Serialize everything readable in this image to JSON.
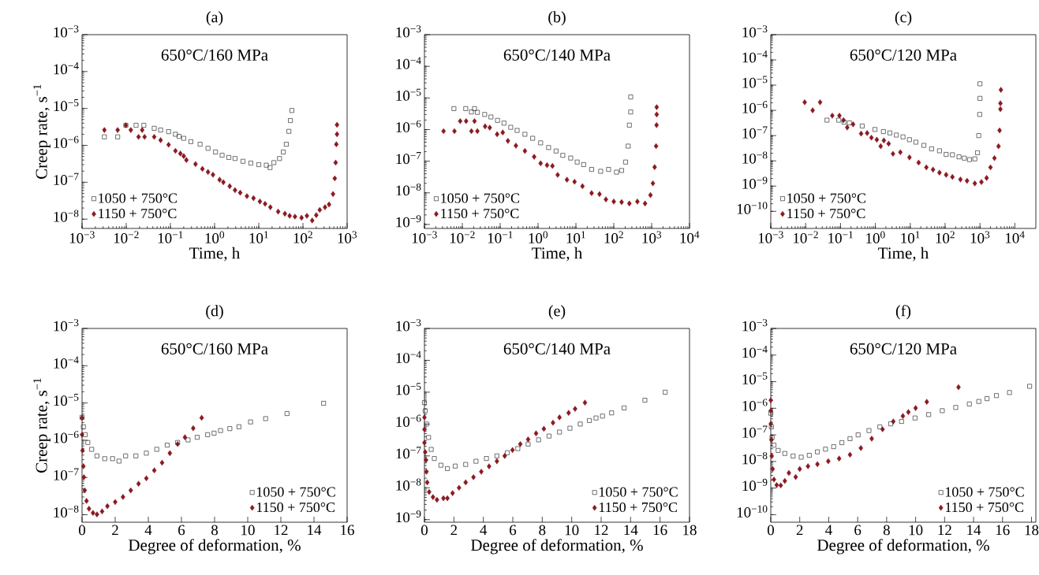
{
  "chart_data": [
    {
      "type": "scatter",
      "title": "(a)",
      "xlabel": "Time, h",
      "ylabel": "Creep rate, s$^{−1}$",
      "annotations": [
        "650°C/160 MPa"
      ],
      "log": "xy",
      "xlim": [
        0.001,
        1000
      ],
      "ylim": [
        5.6e-09,
        0.001
      ],
      "legend": "bottom left",
      "xticks": [
        {
          "value": 0.001,
          "label": "10$^{−3}$"
        },
        {
          "value": 0.01,
          "label": "10$^{−2}$"
        },
        {
          "value": 0.1,
          "label": "10$^{−1}$"
        },
        {
          "value": 1,
          "label": "10$^{0}$"
        },
        {
          "value": 10,
          "label": "10$^{1}$"
        },
        {
          "value": 100,
          "label": "10$^{2}$"
        },
        {
          "value": 1000,
          "label": "10$^{3}$"
        }
      ],
      "yticks": [
        {
          "value": 1e-08,
          "label": "10$^{−8}$"
        },
        {
          "value": 1e-07,
          "label": "10$^{−7}$"
        },
        {
          "value": 1e-06,
          "label": "10$^{−6}$"
        },
        {
          "value": 1e-05,
          "label": "10$^{−5}$"
        },
        {
          "value": 0.0001,
          "label": "10$^{−4}$"
        },
        {
          "value": 0.001,
          "label": "10$^{−3}$"
        }
      ],
      "series": [
        {
          "name": "1050 + 750°C",
          "color": "#333333",
          "marker": "square",
          "x": [
            0.0032,
            0.0064,
            0.0098,
            0.0167,
            0.025,
            0.043,
            0.06,
            0.091,
            0.13,
            0.157,
            0.2,
            0.29,
            0.47,
            0.71,
            1.05,
            1.48,
            2.1,
            2.9,
            4.4,
            6.6,
            10,
            14.8,
            18,
            22,
            29.5,
            36,
            42,
            48,
            52,
            56
          ],
          "values": [
            1.7e-06,
            1.7e-06,
            3.5e-06,
            3.5e-06,
            3.5e-06,
            2.9e-06,
            2.6e-06,
            2.35e-06,
            2e-06,
            1.75e-06,
            1.55e-06,
            1.26e-06,
            1.07e-06,
            8.3e-07,
            6.6e-07,
            5.4e-07,
            4.7e-07,
            4.4e-07,
            3.7e-07,
            3.3e-07,
            3e-07,
            2.9e-07,
            2.5e-07,
            3.4e-07,
            4.4e-07,
            6.6e-07,
            1.07e-06,
            2.4e-06,
            4.7e-06,
            8.8e-06
          ]
        },
        {
          "name": "1150 + 750°C",
          "color": "#8b1a22",
          "marker": "diamond",
          "x": [
            0.0032,
            0.0064,
            0.0098,
            0.0127,
            0.019,
            0.023,
            0.026,
            0.043,
            0.06,
            0.091,
            0.13,
            0.168,
            0.2,
            0.23,
            0.37,
            0.53,
            0.71,
            0.92,
            1.3,
            1.58,
            2.2,
            2.9,
            3.8,
            5.4,
            7.6,
            10.6,
            13.9,
            18.3,
            27.5,
            39,
            50,
            66,
            93,
            123,
            162,
            200,
            240,
            316,
            390,
            480,
            525,
            550,
            570,
            590,
            590
          ],
          "values": [
            2.6e-06,
            2.6e-06,
            3.5e-06,
            2.6e-06,
            1.7e-06,
            2.6e-06,
            1.7e-06,
            1.7e-06,
            1.38e-06,
            1.04e-06,
            7.1e-07,
            6e-07,
            5.1e-07,
            4e-07,
            3.1e-07,
            2.3e-07,
            1.9e-07,
            1.6e-07,
            1.17e-07,
            1e-07,
            7.8e-08,
            6.1e-08,
            5.2e-08,
            4.2e-08,
            3.7e-08,
            3e-08,
            2.6e-08,
            2.1e-08,
            1.6e-08,
            1.4e-08,
            1.23e-08,
            1.17e-08,
            1.09e-08,
            1.23e-08,
            9.2e-09,
            1.28e-08,
            1.78e-08,
            2.1e-08,
            2.5e-08,
            4.8e-08,
            1.27e-07,
            3.4e-07,
            1.07e-06,
            2e-06,
            3.6e-06
          ]
        }
      ]
    },
    {
      "type": "scatter",
      "title": "(b)",
      "xlabel": "Time, h",
      "annotations": [
        "650°C/140 MPa"
      ],
      "log": "xy",
      "xlim": [
        0.001,
        10000
      ],
      "ylim": [
        7.5e-10,
        0.001
      ],
      "legend": "bottom left",
      "xticks": [
        {
          "value": 0.001,
          "label": "10$^{−3}$"
        },
        {
          "value": 0.01,
          "label": "10$^{−2}$"
        },
        {
          "value": 0.1,
          "label": "10$^{−1}$"
        },
        {
          "value": 1,
          "label": "10$^{0}$"
        },
        {
          "value": 10,
          "label": "10$^{1}$"
        },
        {
          "value": 100,
          "label": "10$^{2}$"
        },
        {
          "value": 1000,
          "label": "10$^{3}$"
        },
        {
          "value": 10000,
          "label": "10$^{4}$"
        }
      ],
      "yticks": [
        {
          "value": 1e-09,
          "label": "10$^{−9}$"
        },
        {
          "value": 1e-08,
          "label": "10$^{−8}$"
        },
        {
          "value": 1e-07,
          "label": "10$^{−7}$"
        },
        {
          "value": 1e-06,
          "label": "10$^{−6}$"
        },
        {
          "value": 1e-05,
          "label": "10$^{−5}$"
        },
        {
          "value": 0.0001,
          "label": "10$^{−4}$"
        },
        {
          "value": 0.001,
          "label": "10$^{−3}$"
        }
      ],
      "series": [
        {
          "name": "1050 + 750°C",
          "color": "#333333",
          "marker": "square",
          "x": [
            0.006,
            0.0123,
            0.0174,
            0.021,
            0.025,
            0.039,
            0.057,
            0.085,
            0.126,
            0.19,
            0.28,
            0.45,
            0.72,
            1.17,
            1.9,
            3.0,
            4.5,
            7.3,
            10.8,
            16,
            26,
            45,
            73,
            118,
            161,
            205,
            240,
            258,
            280,
            280
          ],
          "values": [
            4.6e-06,
            4.6e-06,
            3.6e-06,
            4.6e-06,
            3.5e-06,
            3e-06,
            2.5e-06,
            1.95e-06,
            1.6e-06,
            1.18e-06,
            9.4e-07,
            7.1e-07,
            5.3e-07,
            3.8e-07,
            2.7e-07,
            2.1e-07,
            1.53e-07,
            1.26e-07,
            9.4e-08,
            7.8e-08,
            5.5e-08,
            4.8e-08,
            5.5e-08,
            4.5e-08,
            5.1e-08,
            9.4e-08,
            3e-07,
            1.38e-06,
            3.6e-06,
            1.07e-05
          ]
        },
        {
          "name": "1150 + 750°C",
          "color": "#8b1a22",
          "marker": "diamond",
          "x": [
            0.0032,
            0.0062,
            0.0088,
            0.0126,
            0.0174,
            0.021,
            0.025,
            0.04,
            0.053,
            0.083,
            0.117,
            0.16,
            0.26,
            0.45,
            0.79,
            1.17,
            1.73,
            2.4,
            3.3,
            5.8,
            9.2,
            14.9,
            26,
            42,
            62,
            100,
            161,
            258,
            420,
            670,
            930,
            1080,
            1200,
            1310,
            1350,
            1360,
            1360
          ],
          "values": [
            8.9e-07,
            8.9e-07,
            1.85e-06,
            1.85e-06,
            8.9e-07,
            1.85e-06,
            8.9e-07,
            1.26e-06,
            1.15e-06,
            7.1e-07,
            8.1e-07,
            4.4e-07,
            3.1e-07,
            2.1e-07,
            1.38e-07,
            8.6e-08,
            7.5e-08,
            7.1e-08,
            3.7e-08,
            2.6e-08,
            2.24e-08,
            1.62e-08,
            9.8e-09,
            9.1e-09,
            6.2e-09,
            5.3e-09,
            5.1e-09,
            4.6e-09,
            5.3e-09,
            4.6e-09,
            8.5e-09,
            2e-08,
            6.5e-08,
            3e-07,
            1.38e-06,
            3e-06,
            5.1e-06
          ]
        }
      ]
    },
    {
      "type": "scatter",
      "title": "(c)",
      "xlabel": "Time, h",
      "annotations": [
        "650°C/120 MPa"
      ],
      "log": "xy",
      "xlim": [
        0.001,
        40000
      ],
      "ylim": [
        2.1e-11,
        0.001
      ],
      "legend": "bottom left",
      "xticks": [
        {
          "value": 0.001,
          "label": "10$^{−3}$"
        },
        {
          "value": 0.01,
          "label": "10$^{−2}$"
        },
        {
          "value": 0.1,
          "label": "10$^{−1}$"
        },
        {
          "value": 1,
          "label": "10$^{0}$"
        },
        {
          "value": 10,
          "label": "10$^{1}$"
        },
        {
          "value": 100,
          "label": "10$^{2}$"
        },
        {
          "value": 1000,
          "label": "10$^{3}$"
        },
        {
          "value": 10000,
          "label": "10$^{4}$"
        }
      ],
      "yticks": [
        {
          "value": 1e-10,
          "label": "10$^{−10}$"
        },
        {
          "value": 1e-09,
          "label": "10$^{−9}$"
        },
        {
          "value": 1e-08,
          "label": "10$^{−8}$"
        },
        {
          "value": 1e-07,
          "label": "10$^{−7}$"
        },
        {
          "value": 1e-06,
          "label": "10$^{−6}$"
        },
        {
          "value": 1e-05,
          "label": "10$^{−5}$"
        },
        {
          "value": 0.0001,
          "label": "10$^{−4}$"
        },
        {
          "value": 0.001,
          "label": "10$^{−3}$"
        }
      ],
      "series": [
        {
          "name": "1050 + 750°C",
          "color": "#333333",
          "marker": "square",
          "x": [
            0.041,
            0.089,
            0.126,
            0.18,
            0.42,
            0.97,
            1.7,
            2.6,
            4.0,
            6.2,
            9.5,
            14.5,
            24.5,
            41,
            69,
            107,
            162,
            250,
            355,
            500,
            710,
            850,
            920,
            980,
            1000,
            1000
          ],
          "values": [
            4.1e-07,
            4.1e-07,
            3.4e-07,
            3.2e-07,
            2.4e-07,
            1.75e-07,
            1.44e-07,
            1.28e-07,
            1.05e-07,
            8.9e-08,
            6.9e-08,
            5.5e-08,
            4.1e-08,
            3e-08,
            2.5e-08,
            1.8e-08,
            1.74e-08,
            1.44e-08,
            1.28e-08,
            1.12e-08,
            1.2e-08,
            2.1e-08,
            1e-07,
            6.9e-07,
            3e-06,
            1.13e-05
          ]
        },
        {
          "name": "1150 + 750°C",
          "color": "#8b1a22",
          "marker": "diamond",
          "x": [
            0.0094,
            0.0159,
            0.026,
            0.058,
            0.093,
            0.122,
            0.156,
            0.23,
            0.39,
            0.58,
            0.77,
            1.1,
            1.42,
            1.75,
            2.4,
            3.2,
            5.2,
            9.5,
            17.4,
            29,
            45,
            69,
            107,
            162,
            275,
            425,
            710,
            1100,
            1550,
            2000,
            2600,
            3400,
            3650,
            3850,
            3850,
            3980
          ],
          "values": [
            2.1e-06,
            1e-06,
            2.1e-06,
            6.2e-07,
            6.2e-07,
            4.1e-07,
            2.1e-07,
            2.8e-07,
            1.2e-07,
            1.26e-07,
            8.3e-08,
            6.9e-08,
            3.8e-08,
            6.4e-08,
            4.8e-08,
            1.9e-08,
            2.2e-08,
            1.37e-08,
            8.5e-09,
            5.5e-09,
            4.5e-09,
            3.4e-09,
            2.8e-09,
            2.3e-09,
            1.83e-09,
            1.62e-09,
            1.28e-09,
            1.45e-09,
            2.1e-09,
            5.5e-09,
            1.28e-08,
            3.8e-08,
            1.6e-07,
            1.12e-06,
            1.9e-06,
            6.5e-06
          ]
        }
      ]
    },
    {
      "type": "scatter",
      "title": "(d)",
      "xlabel": "Degree of deformation, %",
      "ylabel": "Creep rate, s$^{−1}$",
      "annotations": [
        "650°C/160 MPa"
      ],
      "log": "y",
      "xlim": [
        0,
        16
      ],
      "ylim": [
        6.3e-09,
        0.001
      ],
      "legend": "bottom right",
      "xticks": [
        0,
        2,
        4,
        6,
        8,
        10,
        12,
        14,
        16
      ],
      "yticks": [
        {
          "value": 1e-08,
          "label": "10$^{−8}$"
        },
        {
          "value": 1e-07,
          "label": "10$^{−7}$"
        },
        {
          "value": 1e-06,
          "label": "10$^{−6}$"
        },
        {
          "value": 1e-05,
          "label": "10$^{−5}$"
        },
        {
          "value": 0.0001,
          "label": "10$^{−4}$"
        },
        {
          "value": 0.001,
          "label": "10$^{−3}$"
        }
      ],
      "series": [
        {
          "name": "1050 + 750°C",
          "color": "#333333",
          "marker": "square",
          "x": [
            0,
            0.08,
            0.19,
            0.35,
            0.58,
            0.9,
            1.37,
            1.84,
            2.23,
            2.63,
            3.25,
            3.88,
            4.51,
            5.14,
            5.77,
            6.4,
            6.95,
            7.58,
            7.97,
            8.36,
            8.92,
            9.47,
            10.17,
            11.08,
            12.37,
            14.58
          ],
          "values": [
            4.1e-06,
            2.3e-06,
            1.41e-06,
            8.7e-07,
            5.7e-07,
            3.8e-07,
            3.2e-07,
            3.2e-07,
            2.75e-07,
            3.8e-07,
            3.8e-07,
            4.5e-07,
            5.7e-07,
            7.4e-07,
            8.7e-07,
            1.02e-06,
            1.2e-06,
            1.41e-06,
            1.55e-06,
            1.82e-06,
            2.05e-06,
            2.3e-06,
            3.1e-06,
            3.8e-06,
            5.2e-06,
            9.8e-06
          ]
        },
        {
          "name": "1150 + 750°C",
          "color": "#8b1a22",
          "marker": "diamond",
          "x": [
            0,
            0,
            0.03,
            0.08,
            0.11,
            0.16,
            0.27,
            0.42,
            0.66,
            0.9,
            1.21,
            1.53,
            2.0,
            2.47,
            2.94,
            3.41,
            3.88,
            4.36,
            4.83,
            5.3,
            5.77,
            6.21,
            6.71,
            7.22
          ],
          "values": [
            4e-06,
            1.41e-06,
            5.3e-07,
            2e-07,
            1.02e-07,
            4.5e-08,
            2.35e-08,
            1.45e-08,
            1.12e-08,
            1.02e-08,
            1.23e-08,
            1.7e-08,
            2.2e-08,
            3e-08,
            4.5e-08,
            6.8e-08,
            9.5e-08,
            1.55e-07,
            2.5e-07,
            4.5e-07,
            7.9e-07,
            1.2e-06,
            2.1e-06,
            4e-06
          ]
        }
      ]
    },
    {
      "type": "scatter",
      "title": "(e)",
      "xlabel": "Degree of deformation, %",
      "annotations": [
        "650°C/140 MPa"
      ],
      "log": "y",
      "xlim": [
        0,
        18
      ],
      "ylim": [
        8.3e-10,
        0.001
      ],
      "legend": "bottom right",
      "xticks": [
        0,
        2,
        4,
        6,
        8,
        10,
        12,
        14,
        16,
        18
      ],
      "yticks": [
        {
          "value": 1e-09,
          "label": "10$^{−9}$"
        },
        {
          "value": 1e-08,
          "label": "10$^{−8}$"
        },
        {
          "value": 1e-07,
          "label": "10$^{−7}$"
        },
        {
          "value": 1e-06,
          "label": "10$^{−6}$"
        },
        {
          "value": 1e-05,
          "label": "10$^{−5}$"
        },
        {
          "value": 0.0001,
          "label": "10$^{−4}$"
        },
        {
          "value": 0.001,
          "label": "10$^{−3}$"
        }
      ],
      "series": [
        {
          "name": "1050 + 750°C",
          "color": "#333333",
          "marker": "square",
          "x": [
            0,
            0.05,
            0.14,
            0.28,
            0.46,
            0.67,
            1.12,
            1.56,
            2.09,
            2.8,
            3.5,
            4.21,
            4.92,
            5.63,
            6.34,
            7.04,
            7.75,
            8.46,
            9.17,
            9.88,
            10.58,
            11.2,
            11.65,
            12.09,
            12.71,
            13.56,
            14.97,
            16.35
          ],
          "values": [
            4.7e-06,
            2.6e-06,
            1e-06,
            3.8e-07,
            1.6e-07,
            8.3e-08,
            5.1e-08,
            4e-08,
            4.8e-08,
            5.4e-08,
            6.8e-08,
            8.3e-08,
            1e-07,
            1.26e-07,
            1.7e-07,
            2.35e-07,
            3.2e-07,
            4.2e-07,
            5.6e-07,
            7.4e-07,
            1e-06,
            1.29e-06,
            1.55e-06,
            1.78e-06,
            2.24e-06,
            3.2e-06,
            5.6e-06,
            1e-05
          ]
        },
        {
          "name": "1150 + 750°C",
          "color": "#8b1a22",
          "marker": "diamond",
          "x": [
            0,
            0,
            0,
            0.05,
            0.11,
            0.14,
            0.19,
            0.32,
            0.58,
            0.85,
            1.29,
            1.56,
            1.91,
            2.35,
            2.8,
            3.33,
            3.86,
            4.39,
            4.92,
            5.45,
            5.98,
            6.51,
            7.04,
            7.58,
            8.11,
            8.73,
            9.17,
            9.79,
            10.23,
            10.9
          ],
          "values": [
            1.62e-06,
            6.8e-07,
            2.6e-07,
            1.32e-07,
            7.4e-08,
            3.2e-08,
            1.48e-08,
            7.4e-09,
            5.1e-09,
            4.2e-09,
            4.7e-09,
            4.7e-09,
            6.8e-09,
            1e-08,
            1.48e-08,
            2.15e-08,
            3.2e-08,
            4.7e-08,
            6.8e-08,
            1e-07,
            1.53e-07,
            2.35e-07,
            3.3e-07,
            5.1e-07,
            7.1e-07,
            1.1e-06,
            1.62e-06,
            2.24e-06,
            3e-06,
            4.7e-06
          ]
        }
      ]
    },
    {
      "type": "scatter",
      "title": "(f)",
      "xlabel": "Degree of deformation, %",
      "annotations": [
        "650°C/120 MPa"
      ],
      "log": "y",
      "xlim": [
        0,
        18.3
      ],
      "ylim": [
        5.2e-11,
        0.001
      ],
      "legend": "bottom right",
      "xticks": [
        0,
        2,
        4,
        6,
        8,
        10,
        12,
        14,
        16,
        18
      ],
      "yticks": [
        {
          "value": 1e-10,
          "label": "10$^{−10}$"
        },
        {
          "value": 1e-09,
          "label": "10$^{−9}$"
        },
        {
          "value": 1e-08,
          "label": "10$^{−8}$"
        },
        {
          "value": 1e-07,
          "label": "10$^{−7}$"
        },
        {
          "value": 1e-06,
          "label": "10$^{−6}$"
        },
        {
          "value": 1e-05,
          "label": "10$^{−5}$"
        },
        {
          "value": 0.0001,
          "label": "10$^{−4}$"
        },
        {
          "value": 0.001,
          "label": "10$^{−3}$"
        }
      ],
      "series": [
        {
          "name": "1050 + 750°C",
          "color": "#333333",
          "marker": "square",
          "x": [
            0,
            0.04,
            0.09,
            0.22,
            0.51,
            0.97,
            1.54,
            2.1,
            2.66,
            3.22,
            3.78,
            4.34,
            4.91,
            5.47,
            6.03,
            6.78,
            7.53,
            8.28,
            9.03,
            9.96,
            10.9,
            11.84,
            12.77,
            13.71,
            14.36,
            14.93,
            15.58,
            16.48,
            17.87
          ],
          "values": [
            6.5e-07,
            2e-07,
            8.1e-08,
            4.1e-08,
            2.6e-08,
            2e-08,
            1.6e-08,
            1.45e-08,
            1.7e-08,
            2.3e-08,
            2.9e-08,
            3.6e-08,
            5.1e-08,
            7.2e-08,
            1e-07,
            1.45e-07,
            2e-07,
            2.6e-07,
            3.2e-07,
            4.3e-07,
            5.8e-07,
            8.1e-07,
            1.07e-06,
            1.45e-06,
            1.8e-06,
            2.3e-06,
            3e-06,
            3.9e-06,
            6.7e-06
          ]
        },
        {
          "name": "1150 + 750°C",
          "color": "#8b1a22",
          "marker": "diamond",
          "x": [
            0,
            0,
            0,
            0.04,
            0.07,
            0.13,
            0.22,
            0.41,
            0.69,
            0.97,
            1.25,
            1.72,
            2.0,
            2.57,
            3.22,
            3.97,
            4.72,
            5.47,
            6.22,
            6.97,
            7.72,
            8.46,
            9.12,
            9.5,
            10.0,
            10.77,
            12.96
          ],
          "values": [
            2e-06,
            8.1e-07,
            2.6e-07,
            6.5e-08,
            1.6e-08,
            5.2e-09,
            2.1e-09,
            1.3e-09,
            1.26e-09,
            1.86e-09,
            3.7e-09,
            2.6e-09,
            5.2e-09,
            6.6e-09,
            7.9e-09,
            1.02e-08,
            1.29e-08,
            1.8e-08,
            3.2e-08,
            7.2e-08,
            1.62e-07,
            3.2e-07,
            5.1e-07,
            7.2e-07,
            1.02e-06,
            1.74e-06,
            6.2e-06
          ]
        }
      ]
    }
  ]
}
